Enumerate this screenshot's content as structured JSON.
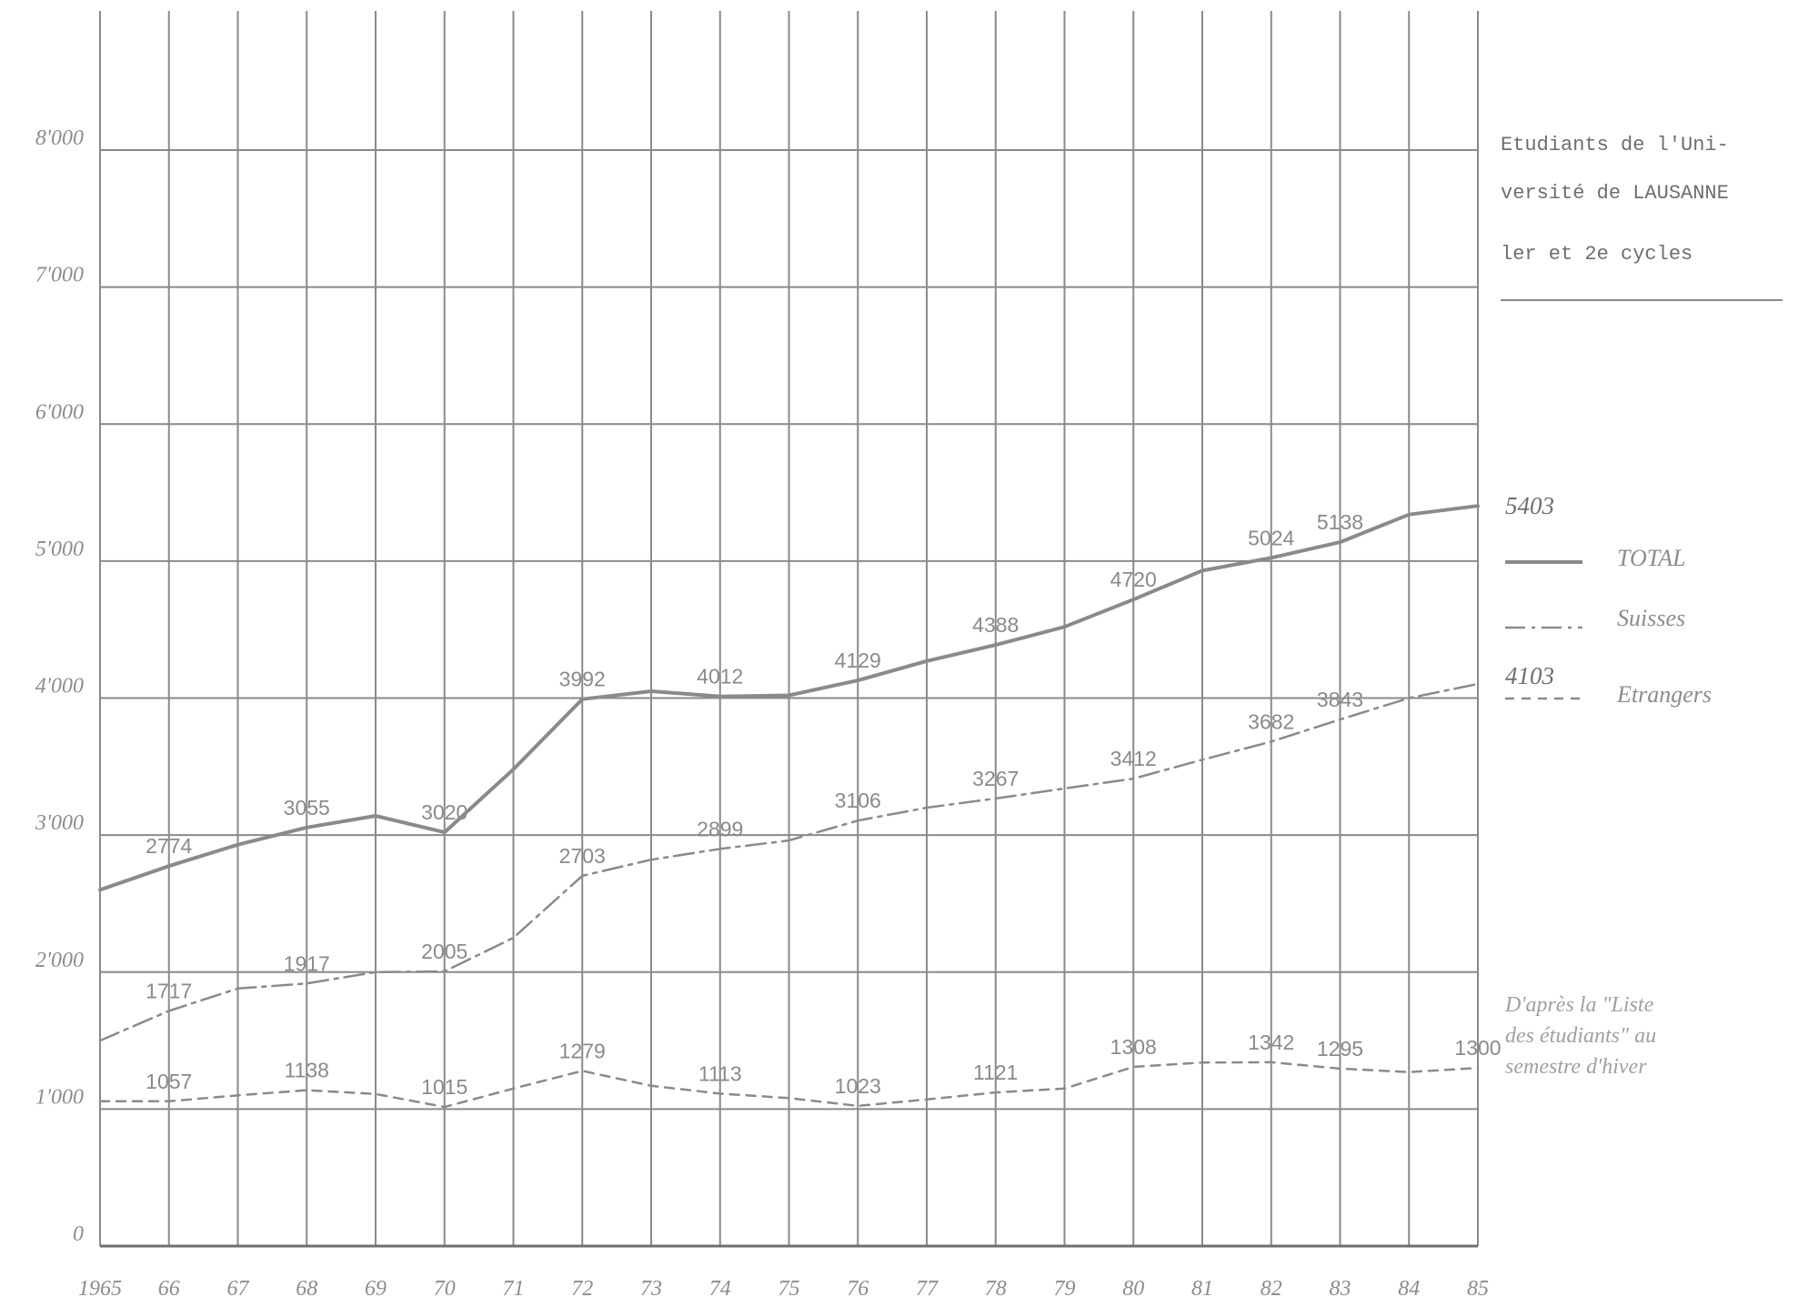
{
  "colors": {
    "line": "#8a8a8a",
    "grid": "#8a8a8a",
    "text": "#8c8c8c"
  },
  "title": [
    "Etudiants de l'Uni-",
    "versité de LAUSANNE",
    "ler et 2e cycles"
  ],
  "source": [
    "D'après la \"Liste",
    "des étudiants\" au",
    "semestre d'hiver"
  ],
  "legend": [
    {
      "name": "TOTAL",
      "dash": "solid"
    },
    {
      "name": "Suisses",
      "dash": "dashdot"
    },
    {
      "name": "Etrangers",
      "dash": "dashed"
    }
  ],
  "legend_values": {
    "total": "5403",
    "suisses": "4103"
  },
  "chart_data": {
    "type": "line",
    "x": [
      1965,
      1966,
      1967,
      1968,
      1969,
      1970,
      1971,
      1972,
      1973,
      1974,
      1975,
      1976,
      1977,
      1978,
      1979,
      1980,
      1981,
      1982,
      1983,
      1984,
      1985
    ],
    "x_tick_labels": [
      "1965",
      "66",
      "67",
      "68",
      "69",
      "70",
      "71",
      "72",
      "73",
      "74",
      "75",
      "76",
      "77",
      "78",
      "79",
      "80",
      "81",
      "82",
      "83",
      "84",
      "85"
    ],
    "y_ticks": [
      0,
      1000,
      2000,
      3000,
      4000,
      5000,
      6000,
      7000,
      8000
    ],
    "y_tick_labels": [
      "0",
      "1'000",
      "2'000",
      "3'000",
      "4'000",
      "5'000",
      "6'000",
      "7'000",
      "8'000"
    ],
    "ylim": [
      0,
      8000
    ],
    "grid": true,
    "legend_position": "right",
    "series": [
      {
        "name": "TOTAL",
        "dash": "solid",
        "values": [
          2600,
          2774,
          2930,
          3055,
          3140,
          3020,
          3480,
          3992,
          4050,
          4012,
          4020,
          4129,
          4270,
          4388,
          4520,
          4720,
          4930,
          5024,
          5138,
          5340,
          5403
        ]
      },
      {
        "name": "Suisses",
        "dash": "dashdot",
        "values": [
          1500,
          1717,
          1880,
          1917,
          2000,
          2005,
          2250,
          2703,
          2820,
          2899,
          2960,
          3106,
          3200,
          3267,
          3340,
          3412,
          3550,
          3682,
          3843,
          4000,
          4103
        ]
      },
      {
        "name": "Etrangers",
        "dash": "dashed",
        "values": [
          1057,
          1057,
          1100,
          1138,
          1110,
          1015,
          1150,
          1279,
          1170,
          1113,
          1080,
          1023,
          1070,
          1121,
          1150,
          1308,
          1340,
          1342,
          1295,
          1270,
          1300
        ]
      }
    ],
    "data_labels": [
      {
        "year": 1966,
        "value": 2774,
        "text": "2774"
      },
      {
        "year": 1968,
        "value": 3055,
        "text": "3055"
      },
      {
        "year": 1970,
        "value": 3020,
        "text": "3020"
      },
      {
        "year": 1972,
        "value": 3992,
        "text": "3992"
      },
      {
        "year": 1974,
        "value": 4012,
        "text": "4012"
      },
      {
        "year": 1976,
        "value": 4129,
        "text": "4129"
      },
      {
        "year": 1978,
        "value": 4388,
        "text": "4388"
      },
      {
        "year": 1980,
        "value": 4720,
        "text": "4720"
      },
      {
        "year": 1982,
        "value": 5024,
        "text": "5024"
      },
      {
        "year": 1983,
        "value": 5138,
        "text": "5138"
      },
      {
        "year": 1966,
        "value": 1717,
        "text": "1717"
      },
      {
        "year": 1968,
        "value": 1917,
        "text": "1917"
      },
      {
        "year": 1970,
        "value": 2005,
        "text": "2005"
      },
      {
        "year": 1972,
        "value": 2703,
        "text": "2703"
      },
      {
        "year": 1974,
        "value": 2899,
        "text": "2899"
      },
      {
        "year": 1976,
        "value": 3106,
        "text": "3106"
      },
      {
        "year": 1978,
        "value": 3267,
        "text": "3267"
      },
      {
        "year": 1980,
        "value": 3412,
        "text": "3412"
      },
      {
        "year": 1982,
        "value": 3682,
        "text": "3682"
      },
      {
        "year": 1983,
        "value": 3843,
        "text": "3843"
      },
      {
        "year": 1966,
        "value": 1057,
        "text": "1057"
      },
      {
        "year": 1968,
        "value": 1138,
        "text": "1138"
      },
      {
        "year": 1970,
        "value": 1015,
        "text": "1015"
      },
      {
        "year": 1972,
        "value": 1279,
        "text": "1279"
      },
      {
        "year": 1974,
        "value": 1113,
        "text": "1113"
      },
      {
        "year": 1976,
        "value": 1023,
        "text": "1023"
      },
      {
        "year": 1978,
        "value": 1121,
        "text": "1121"
      },
      {
        "year": 1980,
        "value": 1308,
        "text": "1308"
      },
      {
        "year": 1982,
        "value": 1342,
        "text": "1342"
      },
      {
        "year": 1983,
        "value": 1295,
        "text": "1295"
      },
      {
        "year": 1985,
        "value": 1300,
        "text": "1300"
      }
    ]
  }
}
